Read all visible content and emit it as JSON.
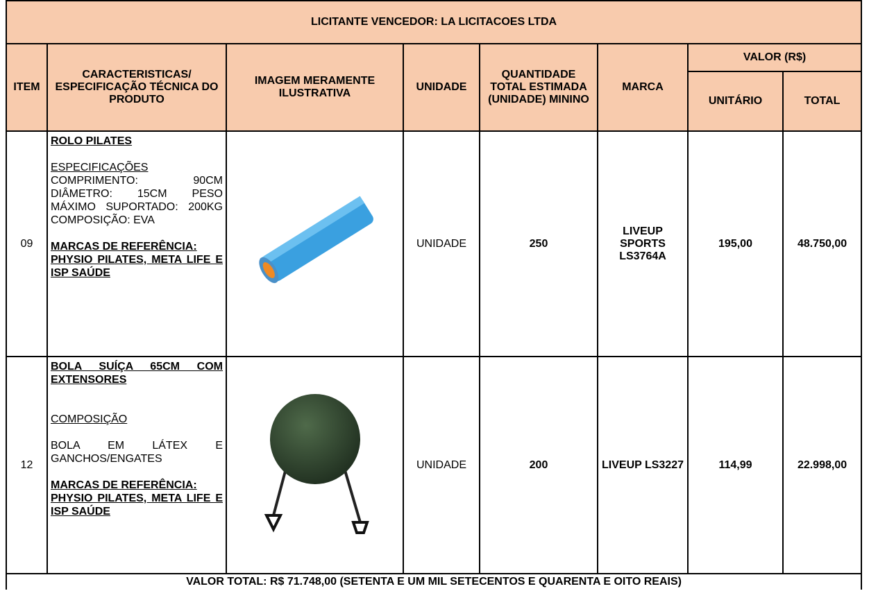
{
  "header": {
    "title": "LICITANTE VENCEDOR: LA LICITACOES LTDA"
  },
  "columns": {
    "item": "ITEM",
    "spec": "CARACTERISTICAS/ ESPECIFICAÇÃO TÉCNICA DO PRODUTO",
    "image": "IMAGEM MERAMENTE ILUSTRATIVA",
    "unit": "UNIDADE",
    "qty": "QUANTIDADE TOTAL ESTIMADA (UNIDADE) MININO",
    "brand": "MARCA",
    "value": "VALOR (R$)",
    "unit_price": "UNITÁRIO",
    "total": "TOTAL"
  },
  "rows": [
    {
      "item": "09",
      "name": "ROLO PILATES",
      "spec_label": "ESPECIFICAÇÕES",
      "spec_text": "COMPRIMENTO: 90CM DIÂMETRO: 15CM PESO MÁXIMO SUPORTADO: 200KG COMPOSIÇÃO: EVA",
      "ref_label": "MARCAS DE REFERÊNCIA:",
      "ref_text": "PHYSIO PILATES, META LIFE E ISP SAÚDE",
      "unit": "UNIDADE",
      "qty": "250",
      "brand": "LIVEUP SPORTS LS3764A",
      "unit_price": "195,00",
      "total": "48.750,00"
    },
    {
      "item": "12",
      "name": "BOLA SUÍÇA 65CM COM EXTENSORES",
      "spec_label": "COMPOSIÇÃO",
      "spec_text": "BOLA EM LÁTEX E GANCHOS/ENGATES",
      "ref_label": "MARCAS DE REFERÊNCIA:",
      "ref_text": "PHYSIO PILATES, META LIFE E ISP SAÚDE",
      "unit": "UNIDADE",
      "qty": "200",
      "brand": "LIVEUP LS3227",
      "unit_price": "114,99",
      "total": "22.998,00"
    }
  ],
  "footer": {
    "total": "VALOR TOTAL: R$ 71.748,00 (SETENTA E UM MIL SETECENTOS E QUARENTA E OITO REAIS)"
  }
}
